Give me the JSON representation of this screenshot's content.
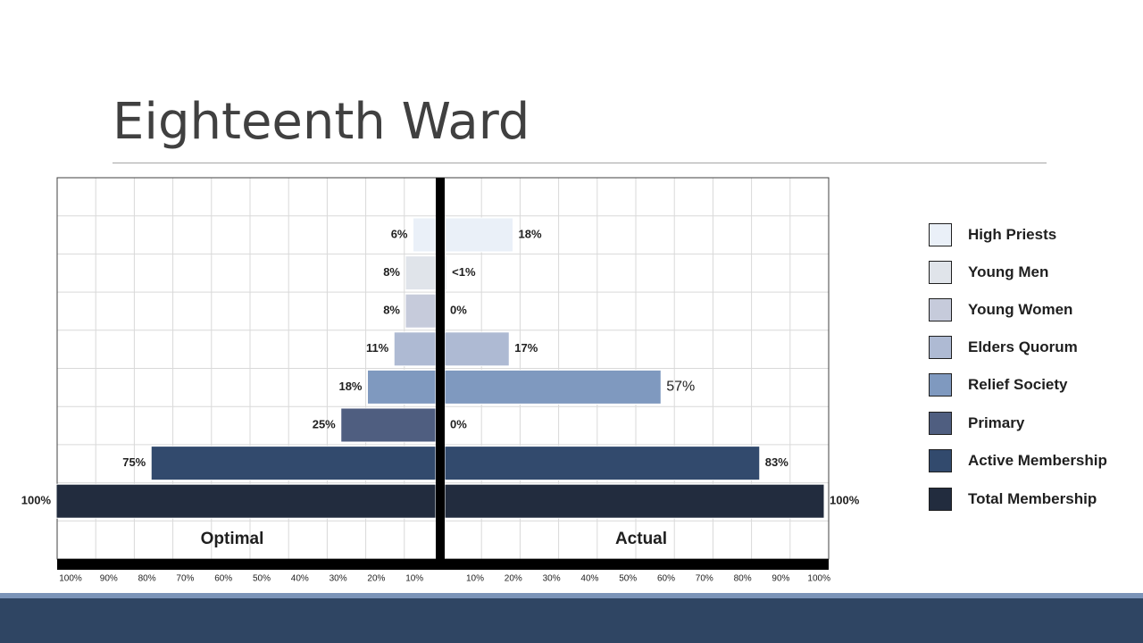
{
  "slide": {
    "title": "Eighteenth Ward"
  },
  "chart_data": {
    "type": "bar",
    "orientation": "horizontal-butterfly",
    "categories": [
      "High Priests",
      "Young Men",
      "Young Women",
      "Elders Quorum",
      "Relief Society",
      "Primary",
      "Active Membership",
      "Total Membership"
    ],
    "series": [
      {
        "name": "Optimal",
        "values": [
          6,
          8,
          8,
          11,
          18,
          25,
          75,
          100
        ],
        "labels": [
          "6%",
          "8%",
          "8%",
          "11%",
          "18%",
          "25%",
          "75%",
          "100%"
        ]
      },
      {
        "name": "Actual",
        "values": [
          18,
          0.5,
          0,
          17,
          57,
          0,
          83,
          100
        ],
        "labels": [
          "18%",
          "<1%",
          "0%",
          "17%",
          "57%",
          "0%",
          "83%",
          "100%"
        ]
      }
    ],
    "colors": [
      "#eaf0f8",
      "#e0e4ea",
      "#c6cbdb",
      "#aebad3",
      "#7f99bf",
      "#4f5e80",
      "#324a6d",
      "#222c3e"
    ],
    "xlim": [
      0,
      100
    ],
    "ticks_left": [
      "100%",
      "90%",
      "80%",
      "70%",
      "60%",
      "50%",
      "40%",
      "30%",
      "20%",
      "10%"
    ],
    "ticks_right": [
      "10%",
      "20%",
      "30%",
      "40%",
      "50%",
      "60%",
      "70%",
      "80%",
      "90%",
      "100%"
    ],
    "grid": true,
    "legend_position": "right"
  }
}
